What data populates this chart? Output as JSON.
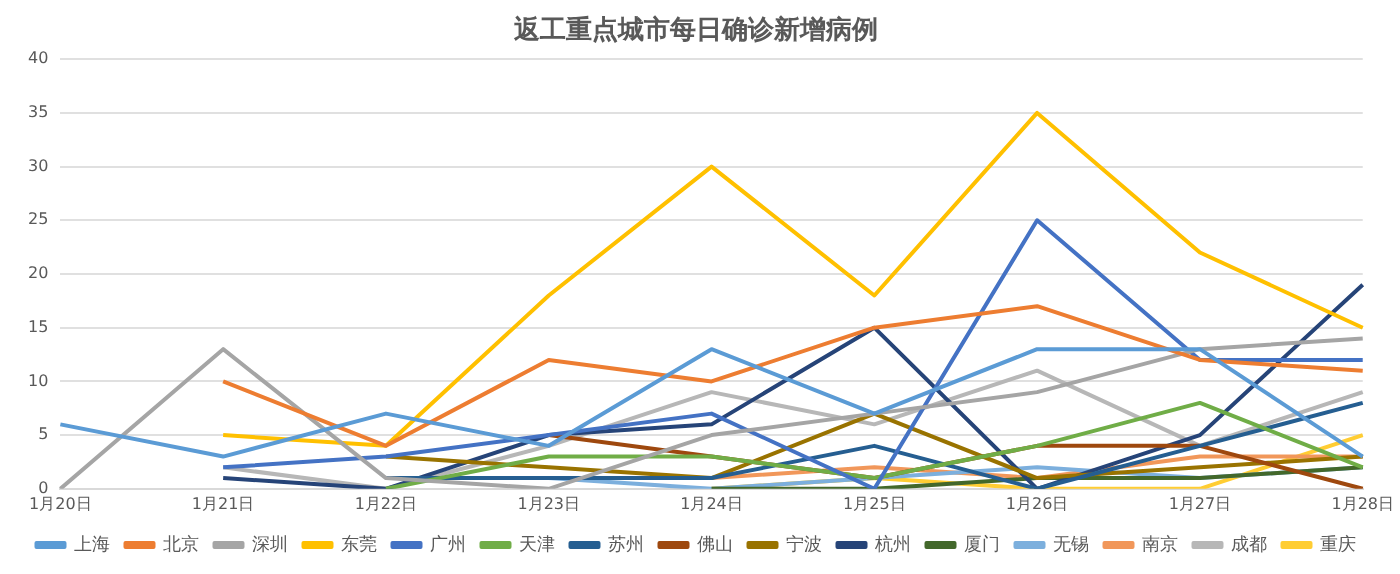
{
  "chart_data": {
    "type": "line",
    "title": "返工重点城市每日确诊新增病例",
    "categories": [
      "1月20日",
      "1月21日",
      "1月22日",
      "1月23日",
      "1月24日",
      "1月25日",
      "1月26日",
      "1月27日",
      "1月28日"
    ],
    "ylim": [
      0,
      40
    ],
    "yticks": [
      0,
      5,
      10,
      15,
      20,
      25,
      30,
      35,
      40
    ],
    "grid": "y",
    "legend": "bottom",
    "marker": "none",
    "line_style": "solid",
    "series": [
      {
        "name": "上海",
        "color": "#5b9bd5",
        "values": [
          6,
          3,
          7,
          4,
          13,
          7,
          13,
          13,
          3
        ]
      },
      {
        "name": "北京",
        "color": "#ed7d31",
        "values": [
          null,
          10,
          4,
          12,
          10,
          15,
          17,
          12,
          11
        ]
      },
      {
        "name": "深圳",
        "color": "#a5a5a5",
        "values": [
          0,
          13,
          1,
          0,
          5,
          7,
          9,
          13,
          14
        ]
      },
      {
        "name": "东莞",
        "color": "#ffc000",
        "values": [
          null,
          5,
          4,
          18,
          30,
          18,
          35,
          22,
          15
        ]
      },
      {
        "name": "广州",
        "color": "#4472c4",
        "values": [
          null,
          2,
          3,
          5,
          7,
          0,
          25,
          12,
          12
        ]
      },
      {
        "name": "天津",
        "color": "#70ad47",
        "values": [
          null,
          null,
          0,
          3,
          3,
          1,
          4,
          8,
          2
        ]
      },
      {
        "name": "苏州",
        "color": "#255e91",
        "values": [
          null,
          null,
          1,
          1,
          1,
          4,
          0,
          4,
          8
        ]
      },
      {
        "name": "佛山",
        "color": "#9e480e",
        "values": [
          null,
          null,
          null,
          5,
          3,
          1,
          4,
          4,
          0
        ]
      },
      {
        "name": "宁波",
        "color": "#997300",
        "values": [
          null,
          null,
          3,
          2,
          1,
          7,
          1,
          2,
          3
        ]
      },
      {
        "name": "杭州",
        "color": "#264478",
        "values": [
          null,
          1,
          0,
          5,
          6,
          15,
          0,
          5,
          19
        ]
      },
      {
        "name": "厦门",
        "color": "#43682b",
        "values": [
          null,
          null,
          null,
          null,
          0,
          0,
          1,
          1,
          2
        ]
      },
      {
        "name": "无锡",
        "color": "#7cafdd",
        "values": [
          null,
          null,
          null,
          1,
          0,
          1,
          2,
          1,
          2
        ]
      },
      {
        "name": "南京",
        "color": "#f1975a",
        "values": [
          null,
          null,
          null,
          1,
          1,
          2,
          1,
          3,
          3
        ]
      },
      {
        "name": "成都",
        "color": "#b7b7b7",
        "values": [
          null,
          2,
          0,
          4,
          9,
          6,
          11,
          4,
          9
        ]
      },
      {
        "name": "重庆",
        "color": "#ffcd33",
        "values": [
          null,
          null,
          null,
          null,
          0,
          1,
          0,
          0,
          5
        ]
      }
    ]
  }
}
